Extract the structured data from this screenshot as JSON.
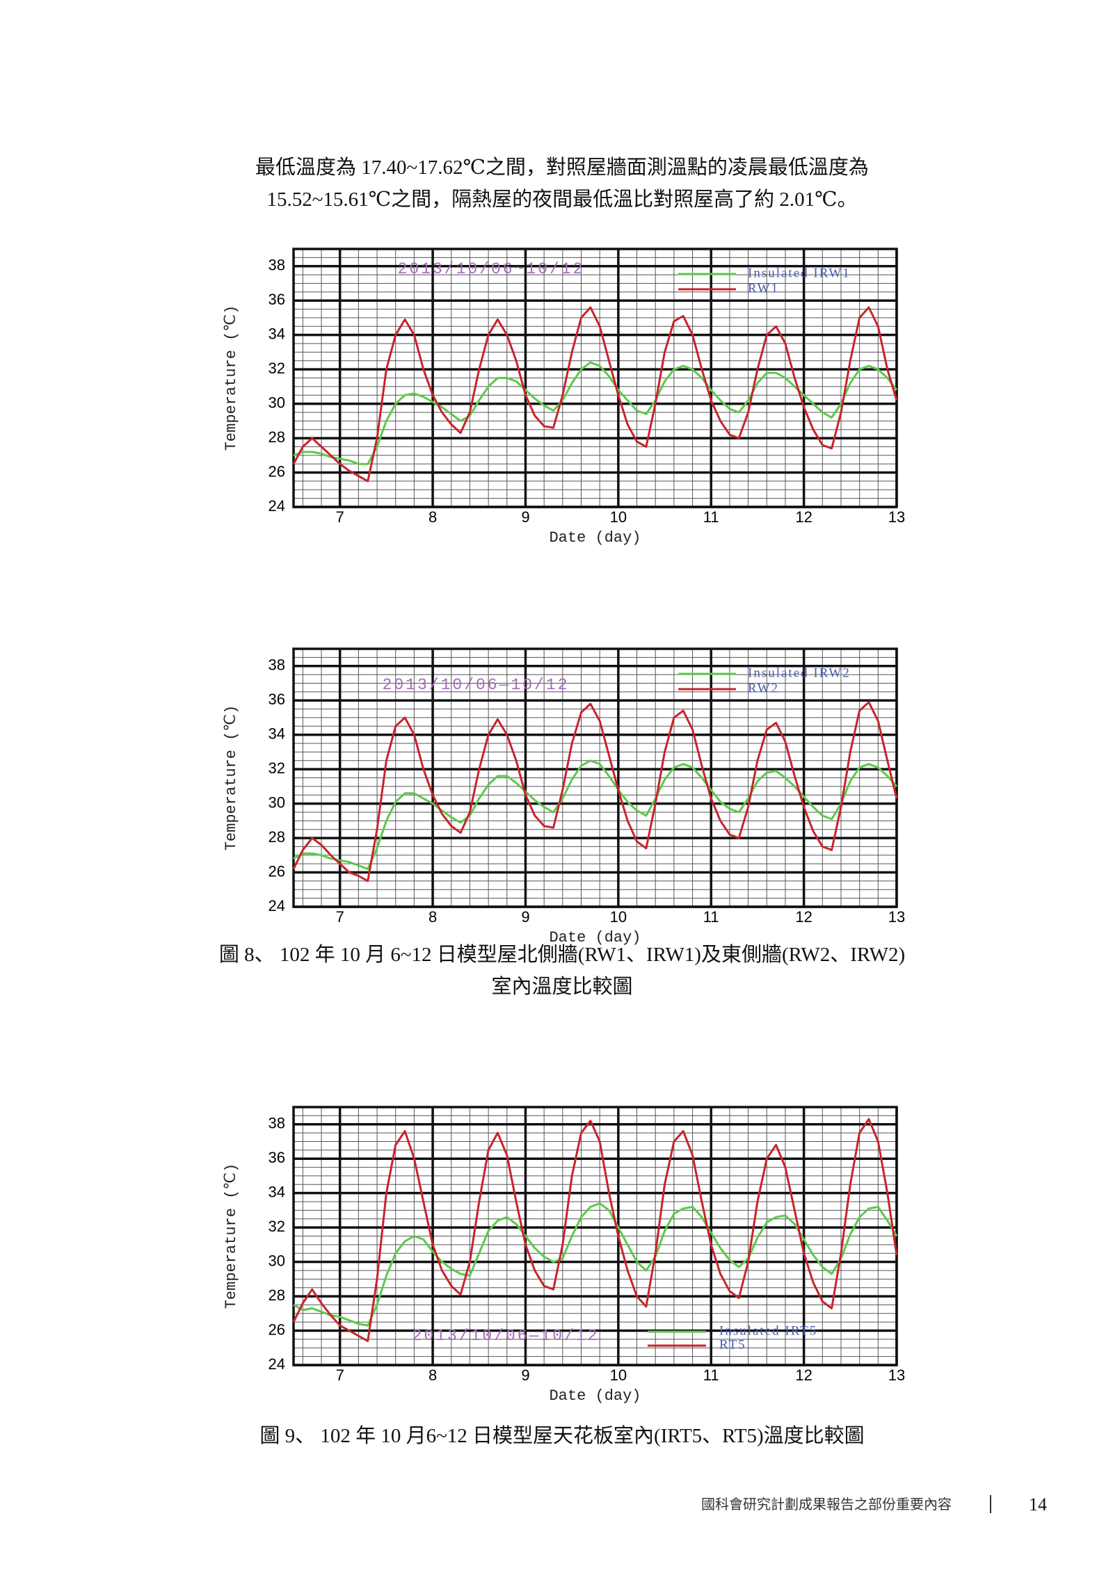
{
  "paragraph": [
    "最低溫度為 17.40~17.62℃之間，對照屋牆面測溫點的凌晨最低溫度為",
    "15.52~15.61℃之間，隔熱屋的夜間最低溫比對照屋高了約 2.01℃。"
  ],
  "chart_data": [
    {
      "type": "line",
      "annotation": "2013/10/06~10/12",
      "x_label": "Date (day)",
      "y_label": "Temperature (℃)",
      "legend": "upper right",
      "xlim": [
        6.5,
        13
      ],
      "xticks": [
        7,
        8,
        9,
        10,
        11,
        12,
        13
      ],
      "ylim": [
        24,
        39
      ],
      "yticks": [
        24,
        26,
        28,
        30,
        32,
        34,
        36,
        38
      ],
      "grid": true,
      "minor_xgrid": [
        6.6,
        6.8,
        7.2,
        7.4,
        7.6,
        7.8,
        8.2,
        8.4,
        8.6,
        8.8,
        9.2,
        9.4,
        9.6,
        9.8,
        10.2,
        10.4,
        10.6,
        10.8,
        11.2,
        11.4,
        11.6,
        11.8,
        12.2,
        12.4,
        12.6,
        12.8
      ],
      "minor_ygrid": [
        24.5,
        25,
        25.5,
        26.5,
        27,
        27.5,
        28.5,
        29,
        29.5,
        30.5,
        31,
        31.5,
        32.5,
        33,
        33.5,
        34.5,
        35,
        35.5,
        36.5,
        37,
        37.5,
        38.5
      ],
      "x": [
        6.5,
        6.6,
        6.7,
        6.8,
        6.9,
        7.0,
        7.1,
        7.2,
        7.3,
        7.4,
        7.5,
        7.6,
        7.7,
        7.8,
        7.9,
        8.0,
        8.1,
        8.2,
        8.3,
        8.4,
        8.5,
        8.6,
        8.7,
        8.8,
        8.9,
        9.0,
        9.1,
        9.2,
        9.3,
        9.4,
        9.5,
        9.6,
        9.7,
        9.8,
        9.9,
        10.0,
        10.1,
        10.2,
        10.3,
        10.4,
        10.5,
        10.6,
        10.7,
        10.8,
        10.9,
        11.0,
        11.1,
        11.2,
        11.3,
        11.4,
        11.5,
        11.6,
        11.7,
        11.8,
        11.9,
        12.0,
        12.1,
        12.2,
        12.3,
        12.4,
        12.5,
        12.6,
        12.7,
        12.8,
        12.9,
        13.0
      ],
      "series": [
        {
          "name": "Insulated IRW1",
          "color": "#5cc94a",
          "values": [
            27.0,
            27.2,
            27.2,
            27.1,
            26.9,
            26.8,
            26.7,
            26.5,
            26.5,
            27.5,
            29.0,
            30.0,
            30.5,
            30.6,
            30.4,
            30.1,
            29.8,
            29.4,
            29.0,
            29.3,
            30.2,
            31.0,
            31.5,
            31.5,
            31.3,
            30.8,
            30.3,
            29.9,
            29.6,
            30.2,
            31.2,
            32.0,
            32.4,
            32.2,
            31.6,
            30.8,
            30.2,
            29.6,
            29.4,
            30.2,
            31.3,
            32.0,
            32.2,
            32.0,
            31.5,
            30.8,
            30.2,
            29.7,
            29.5,
            30.2,
            31.2,
            31.8,
            31.8,
            31.5,
            31.0,
            30.5,
            30.0,
            29.5,
            29.2,
            30.0,
            31.2,
            32.0,
            32.2,
            32.0,
            31.5,
            30.8
          ]
        },
        {
          "name": "RW1",
          "color": "#c8232c",
          "values": [
            26.5,
            27.5,
            28.0,
            27.5,
            27.0,
            26.5,
            26.1,
            25.8,
            25.5,
            28.0,
            32.0,
            34.0,
            34.9,
            34.0,
            32.0,
            30.5,
            29.5,
            28.8,
            28.3,
            29.5,
            32.0,
            34.0,
            34.9,
            34.0,
            32.5,
            30.5,
            29.3,
            28.7,
            28.6,
            30.5,
            33.0,
            35.0,
            35.6,
            34.5,
            32.5,
            30.5,
            28.8,
            27.8,
            27.5,
            30.0,
            33.0,
            34.8,
            35.1,
            34.0,
            32.0,
            30.2,
            29.0,
            28.2,
            28.0,
            29.5,
            32.0,
            34.0,
            34.5,
            33.5,
            31.5,
            29.8,
            28.5,
            27.6,
            27.4,
            29.5,
            32.5,
            35.0,
            35.6,
            34.5,
            32.0,
            30.2
          ]
        }
      ]
    },
    {
      "type": "line",
      "annotation": "2013/10/06—10/12",
      "x_label": "Date (day)",
      "y_label": "Temperature (℃)",
      "legend": "upper right",
      "xlim": [
        6.5,
        13
      ],
      "xticks": [
        7,
        8,
        9,
        10,
        11,
        12,
        13
      ],
      "ylim": [
        24,
        39
      ],
      "yticks": [
        24,
        26,
        28,
        30,
        32,
        34,
        36,
        38
      ],
      "grid": true,
      "minor_xgrid": [
        6.6,
        6.8,
        7.2,
        7.4,
        7.6,
        7.8,
        8.2,
        8.4,
        8.6,
        8.8,
        9.2,
        9.4,
        9.6,
        9.8,
        10.2,
        10.4,
        10.6,
        10.8,
        11.2,
        11.4,
        11.6,
        11.8,
        12.2,
        12.4,
        12.6,
        12.8
      ],
      "minor_ygrid": [
        24.5,
        25,
        25.5,
        26.5,
        27,
        27.5,
        28.5,
        29,
        29.5,
        30.5,
        31,
        31.5,
        32.5,
        33,
        33.5,
        34.5,
        35,
        35.5,
        36.5,
        37,
        37.5,
        38.5
      ],
      "x": [
        6.5,
        6.6,
        6.7,
        6.8,
        6.9,
        7.0,
        7.1,
        7.2,
        7.3,
        7.4,
        7.5,
        7.6,
        7.7,
        7.8,
        7.9,
        8.0,
        8.1,
        8.2,
        8.3,
        8.4,
        8.5,
        8.6,
        8.7,
        8.8,
        8.9,
        9.0,
        9.1,
        9.2,
        9.3,
        9.4,
        9.5,
        9.6,
        9.7,
        9.8,
        9.9,
        10.0,
        10.1,
        10.2,
        10.3,
        10.4,
        10.5,
        10.6,
        10.7,
        10.8,
        10.9,
        11.0,
        11.1,
        11.2,
        11.3,
        11.4,
        11.5,
        11.6,
        11.7,
        11.8,
        11.9,
        12.0,
        12.1,
        12.2,
        12.3,
        12.4,
        12.5,
        12.6,
        12.7,
        12.8,
        12.9,
        13.0
      ],
      "series": [
        {
          "name": "Insulated IRW2",
          "color": "#5cc94a",
          "values": [
            26.8,
            27.1,
            27.1,
            27.0,
            26.8,
            26.7,
            26.6,
            26.4,
            26.2,
            27.4,
            29.0,
            30.1,
            30.6,
            30.6,
            30.3,
            30.0,
            29.6,
            29.2,
            28.9,
            29.3,
            30.3,
            31.1,
            31.6,
            31.6,
            31.2,
            30.7,
            30.2,
            29.8,
            29.5,
            30.3,
            31.4,
            32.2,
            32.5,
            32.3,
            31.6,
            30.8,
            30.1,
            29.6,
            29.3,
            30.3,
            31.4,
            32.1,
            32.3,
            32.1,
            31.5,
            30.8,
            30.1,
            29.7,
            29.5,
            30.3,
            31.3,
            31.8,
            31.9,
            31.5,
            31.0,
            30.4,
            29.8,
            29.3,
            29.1,
            30.0,
            31.3,
            32.1,
            32.3,
            32.1,
            31.6,
            31.0
          ]
        },
        {
          "name": "RW2",
          "color": "#c8232c",
          "values": [
            26.2,
            27.3,
            28.0,
            27.6,
            27.0,
            26.5,
            26.0,
            25.8,
            25.5,
            28.5,
            32.5,
            34.5,
            35.0,
            34.0,
            32.0,
            30.5,
            29.4,
            28.7,
            28.3,
            29.5,
            32.0,
            34.0,
            34.9,
            34.0,
            32.5,
            30.5,
            29.3,
            28.7,
            28.6,
            30.8,
            33.5,
            35.3,
            35.8,
            34.8,
            32.8,
            30.8,
            29.0,
            27.8,
            27.4,
            30.0,
            33.0,
            35.0,
            35.4,
            34.3,
            32.2,
            30.3,
            29.0,
            28.2,
            28.0,
            29.8,
            32.5,
            34.3,
            34.7,
            33.6,
            31.6,
            29.8,
            28.4,
            27.5,
            27.3,
            29.8,
            33.0,
            35.4,
            35.9,
            34.8,
            32.5,
            30.3
          ]
        }
      ]
    },
    {
      "type": "line",
      "annotation": "2013/10/06—10/12",
      "x_label": "Date (day)",
      "y_label": "Temperature (℃)",
      "legend": "lower center",
      "xlim": [
        6.5,
        13
      ],
      "xticks": [
        7,
        8,
        9,
        10,
        11,
        12,
        13
      ],
      "ylim": [
        24,
        39
      ],
      "yticks": [
        24,
        26,
        28,
        30,
        32,
        34,
        36,
        38
      ],
      "grid": true,
      "minor_xgrid": [
        6.6,
        6.8,
        7.2,
        7.4,
        7.6,
        7.8,
        8.2,
        8.4,
        8.6,
        8.8,
        9.2,
        9.4,
        9.6,
        9.8,
        10.2,
        10.4,
        10.6,
        10.8,
        11.2,
        11.4,
        11.6,
        11.8,
        12.2,
        12.4,
        12.6,
        12.8
      ],
      "minor_ygrid": [
        24.5,
        25,
        25.5,
        26.5,
        27,
        27.5,
        28.5,
        29,
        29.5,
        30.5,
        31,
        31.5,
        32.5,
        33,
        33.5,
        34.5,
        35,
        35.5,
        36.5,
        37,
        37.5,
        38.5
      ],
      "x": [
        6.5,
        6.6,
        6.7,
        6.8,
        6.9,
        7.0,
        7.1,
        7.2,
        7.3,
        7.4,
        7.5,
        7.6,
        7.7,
        7.8,
        7.9,
        8.0,
        8.1,
        8.2,
        8.3,
        8.4,
        8.5,
        8.6,
        8.7,
        8.8,
        8.9,
        9.0,
        9.1,
        9.2,
        9.3,
        9.4,
        9.5,
        9.6,
        9.7,
        9.8,
        9.9,
        10.0,
        10.1,
        10.2,
        10.3,
        10.4,
        10.5,
        10.6,
        10.7,
        10.8,
        10.9,
        11.0,
        11.1,
        11.2,
        11.3,
        11.4,
        11.5,
        11.6,
        11.7,
        11.8,
        11.9,
        12.0,
        12.1,
        12.2,
        12.3,
        12.4,
        12.5,
        12.6,
        12.7,
        12.8,
        12.9,
        13.0
      ],
      "series": [
        {
          "name": "Insulated IRT5",
          "color": "#5cc94a",
          "values": [
            27.5,
            27.2,
            27.3,
            27.1,
            26.9,
            26.8,
            26.6,
            26.4,
            26.3,
            27.5,
            29.2,
            30.5,
            31.2,
            31.5,
            31.3,
            30.6,
            30.0,
            29.6,
            29.3,
            29.2,
            30.5,
            31.8,
            32.4,
            32.6,
            32.2,
            31.5,
            30.8,
            30.3,
            30.0,
            30.2,
            31.5,
            32.6,
            33.2,
            33.4,
            33.0,
            32.0,
            31.0,
            30.0,
            29.5,
            30.3,
            31.8,
            32.8,
            33.1,
            33.2,
            32.6,
            31.7,
            30.8,
            30.1,
            29.7,
            30.2,
            31.4,
            32.3,
            32.6,
            32.7,
            32.2,
            31.3,
            30.4,
            29.7,
            29.3,
            30.2,
            31.6,
            32.6,
            33.1,
            33.2,
            32.4,
            31.5
          ]
        },
        {
          "name": "RT5",
          "color": "#c8232c",
          "values": [
            26.5,
            27.6,
            28.4,
            27.6,
            26.9,
            26.3,
            26.0,
            25.7,
            25.4,
            29.0,
            34.0,
            36.8,
            37.6,
            36.0,
            33.5,
            31.0,
            29.5,
            28.6,
            28.1,
            30.0,
            33.5,
            36.5,
            37.5,
            36.2,
            33.5,
            31.0,
            29.5,
            28.6,
            28.4,
            31.0,
            35.0,
            37.5,
            38.2,
            37.0,
            34.0,
            31.5,
            29.5,
            28.0,
            27.4,
            30.5,
            34.5,
            37.0,
            37.6,
            36.2,
            33.5,
            31.0,
            29.3,
            28.3,
            27.9,
            30.0,
            33.5,
            36.0,
            36.8,
            35.5,
            33.0,
            30.5,
            28.8,
            27.7,
            27.3,
            30.5,
            34.5,
            37.5,
            38.3,
            37.0,
            34.0,
            30.4
          ]
        }
      ]
    }
  ],
  "figure_captions": [
    [
      "圖 8、  102 年 10 月 6~12 日模型屋北側牆(RW1、IRW1)及東側牆(RW2、IRW2)",
      "室內溫度比較圖"
    ],
    [
      "圖 9、  102 年 10 月6~12 日模型屋天花板室內(IRT5、RT5)溫度比較圖"
    ]
  ],
  "footer": {
    "text": "國科會研究計劃成果報告之部份重要內容",
    "page": "14"
  }
}
